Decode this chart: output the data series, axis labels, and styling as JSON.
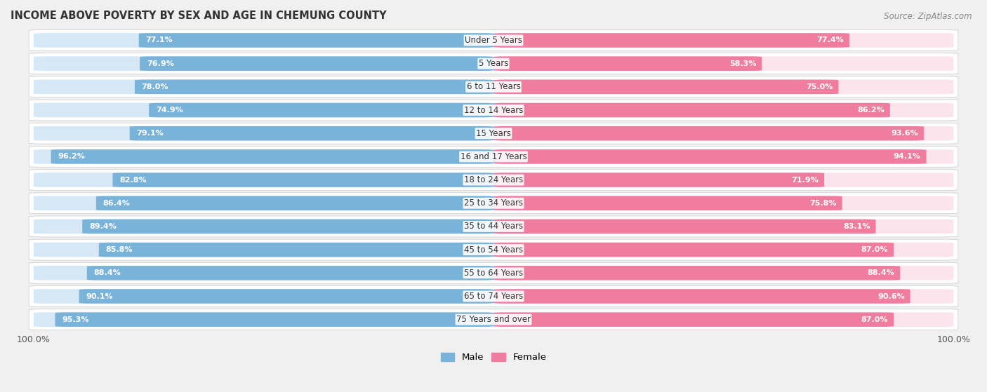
{
  "title": "INCOME ABOVE POVERTY BY SEX AND AGE IN CHEMUNG COUNTY",
  "source": "Source: ZipAtlas.com",
  "categories": [
    "Under 5 Years",
    "5 Years",
    "6 to 11 Years",
    "12 to 14 Years",
    "15 Years",
    "16 and 17 Years",
    "18 to 24 Years",
    "25 to 34 Years",
    "35 to 44 Years",
    "45 to 54 Years",
    "55 to 64 Years",
    "65 to 74 Years",
    "75 Years and over"
  ],
  "male_values": [
    77.1,
    76.9,
    78.0,
    74.9,
    79.1,
    96.2,
    82.8,
    86.4,
    89.4,
    85.8,
    88.4,
    90.1,
    95.3
  ],
  "female_values": [
    77.4,
    58.3,
    75.0,
    86.2,
    93.6,
    94.1,
    71.9,
    75.8,
    83.1,
    87.0,
    88.4,
    90.6,
    87.0
  ],
  "male_color": "#7ab3d9",
  "female_color": "#f07ca0",
  "male_bg_color": "#d6e8f5",
  "female_bg_color": "#fce4ed",
  "row_bg_color": "#ffffff",
  "outer_bg_color": "#f0f0f0",
  "max_val": 100.0,
  "title_fontsize": 10.5,
  "source_fontsize": 8.5,
  "label_fontsize": 8.0,
  "cat_fontsize": 8.5,
  "bar_height": 0.62,
  "legend_male": "Male",
  "legend_female": "Female"
}
